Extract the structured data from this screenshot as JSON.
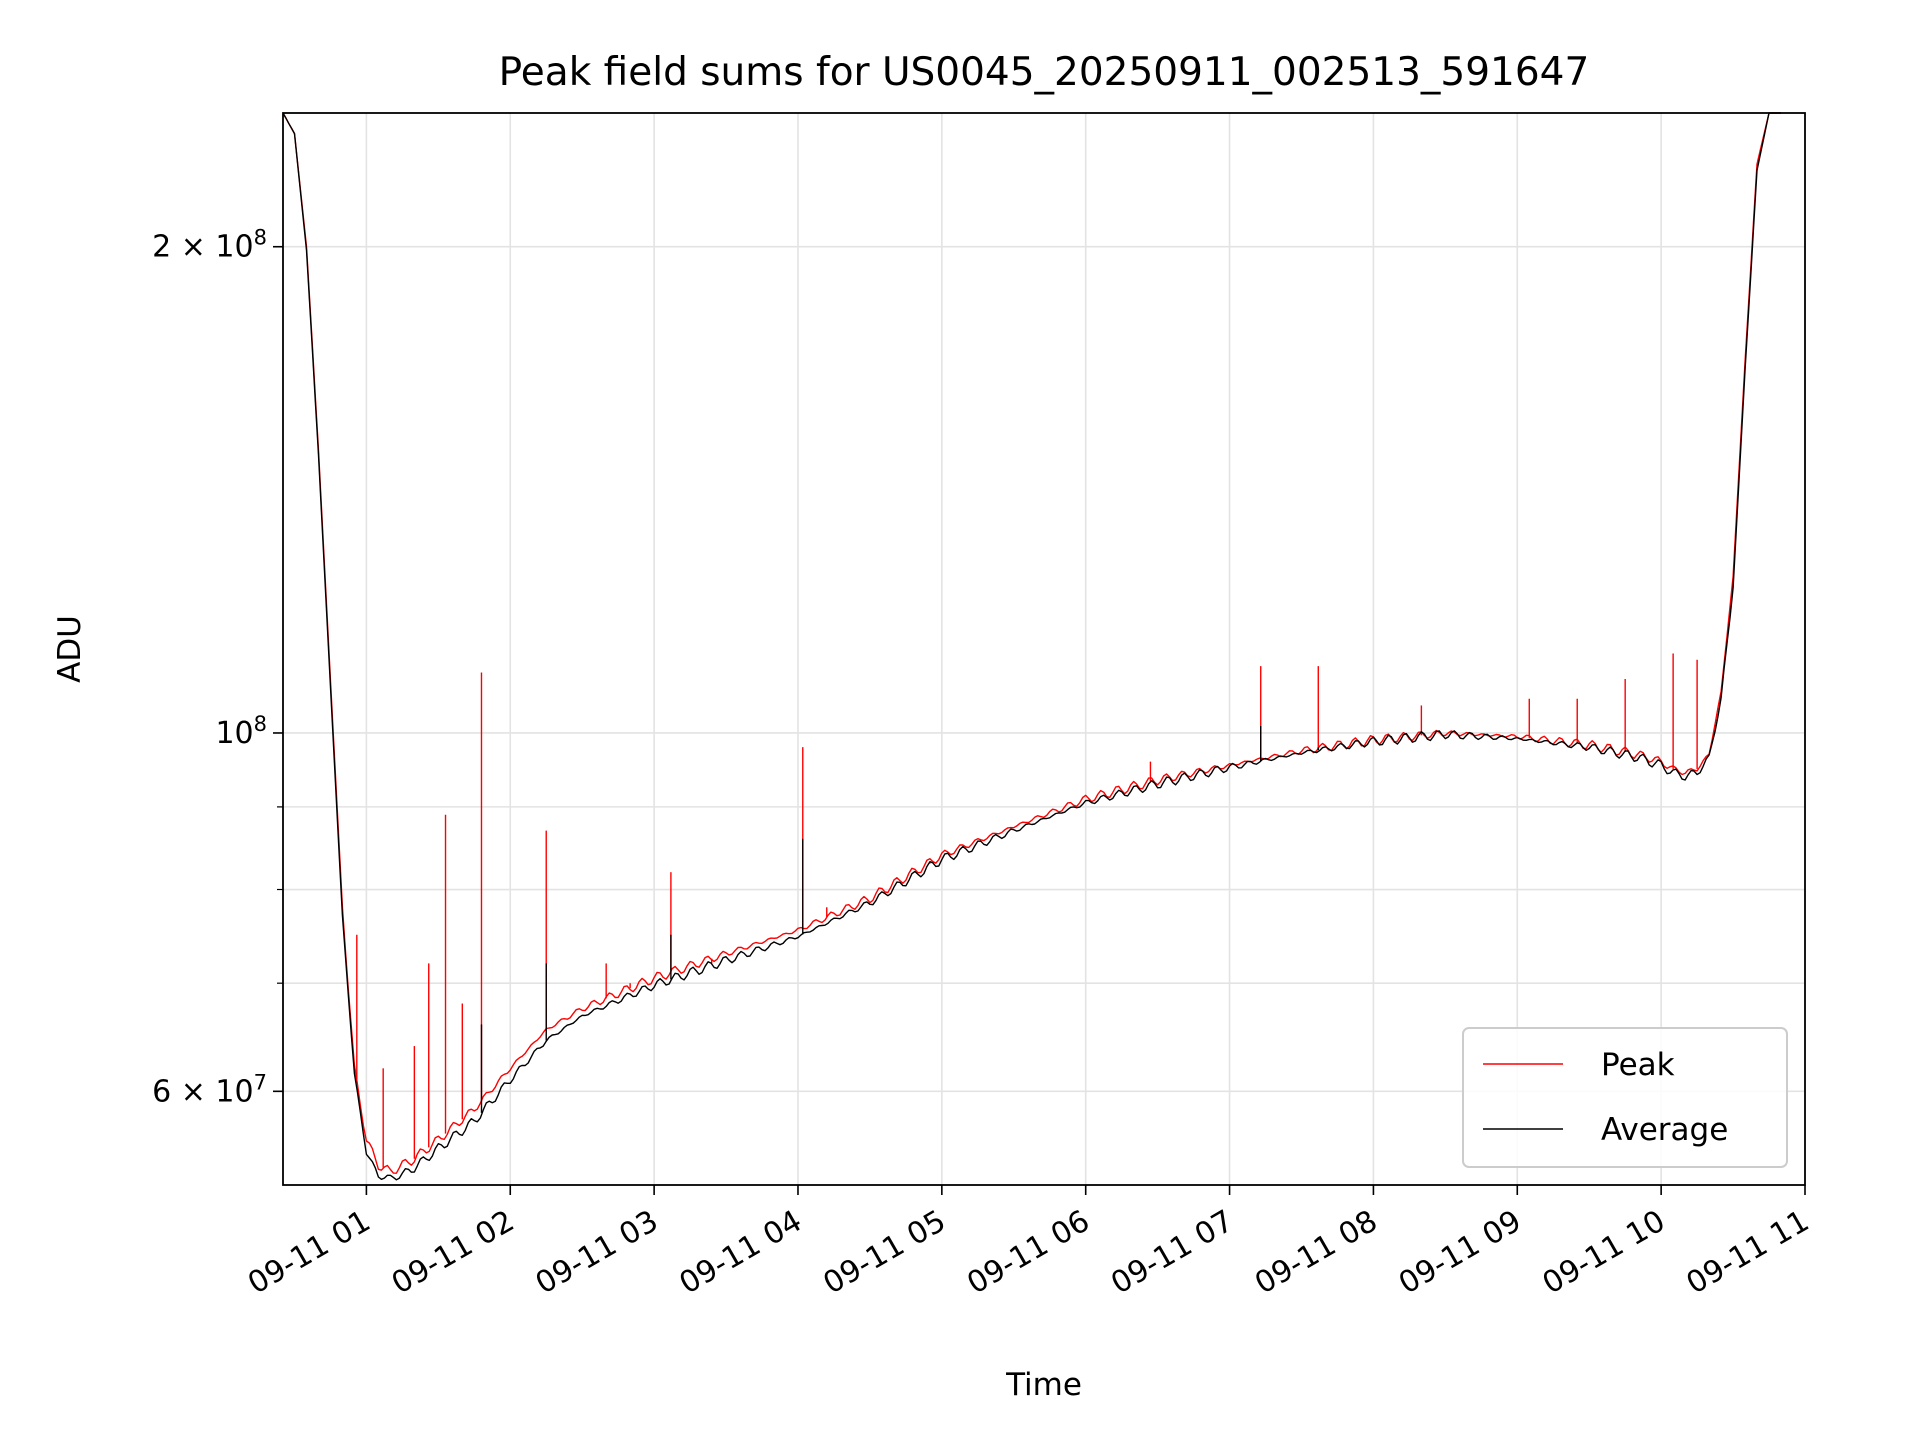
{
  "chart_data": {
    "type": "line",
    "title": "Peak field sums for US0045_20250911_002513_591647",
    "xlabel": "Time",
    "ylabel": "ADU",
    "yscale": "log",
    "ylim": [
      52500000,
      242000000
    ],
    "xlim": [
      "2025-09-11T00:25:13",
      "2025-09-11T11:00:00"
    ],
    "grid": true,
    "legend_position": "lower right",
    "x_ticks": [
      "09-11 01",
      "09-11 02",
      "09-11 03",
      "09-11 04",
      "09-11 05",
      "09-11 06",
      "09-11 07",
      "09-11 08",
      "09-11 09",
      "09-11 10",
      "09-11 11"
    ],
    "y_ticks": [
      {
        "base": "2 × 10",
        "exp": "8",
        "value": 200000000
      },
      {
        "base": "10",
        "exp": "8",
        "value": 100000000
      },
      {
        "base": "6 × 10",
        "exp": "7",
        "value": 60000000
      }
    ],
    "y_minor_ticks": [
      70000000,
      80000000,
      90000000
    ],
    "series": [
      {
        "name": "Peak",
        "color": "#ff0000",
        "x": [
          "2025-09-11T00:25:13",
          "2025-09-11T00:30:00",
          "2025-09-11T00:35:00",
          "2025-09-11T00:40:00",
          "2025-09-11T00:45:00",
          "2025-09-11T00:50:00",
          "2025-09-11T00:55:00",
          "2025-09-11T01:00:00",
          "2025-09-11T01:05:00",
          "2025-09-11T01:10:00",
          "2025-09-11T01:15:00",
          "2025-09-11T01:20:00",
          "2025-09-11T01:30:00",
          "2025-09-11T01:45:00",
          "2025-09-11T02:00:00",
          "2025-09-11T02:15:00",
          "2025-09-11T02:30:00",
          "2025-09-11T02:45:00",
          "2025-09-11T03:00:00",
          "2025-09-11T03:30:00",
          "2025-09-11T04:00:00",
          "2025-09-11T04:30:00",
          "2025-09-11T05:00:00",
          "2025-09-11T05:30:00",
          "2025-09-11T06:00:00",
          "2025-09-11T06:30:00",
          "2025-09-11T07:00:00",
          "2025-09-11T07:30:00",
          "2025-09-11T08:00:00",
          "2025-09-11T08:30:00",
          "2025-09-11T09:00:00",
          "2025-09-11T09:30:00",
          "2025-09-11T09:50:00",
          "2025-09-11T10:00:00",
          "2025-09-11T10:05:00",
          "2025-09-11T10:10:00",
          "2025-09-11T10:15:00",
          "2025-09-11T10:20:00",
          "2025-09-11T10:25:00",
          "2025-09-11T10:30:00",
          "2025-09-11T10:35:00",
          "2025-09-11T10:40:00",
          "2025-09-11T10:45:00",
          "2025-09-11T10:50:00"
        ],
        "values": [
          242000000,
          235000000,
          200000000,
          150000000,
          108000000,
          78000000,
          62000000,
          56000000,
          54000000,
          53500000,
          54000000,
          54500000,
          56000000,
          58500000,
          62000000,
          65500000,
          67500000,
          69000000,
          70500000,
          73000000,
          75500000,
          79000000,
          84000000,
          87500000,
          91000000,
          93500000,
          95500000,
          97500000,
          99000000,
          100000000,
          99500000,
          98300000,
          97000000,
          96000000,
          95000000,
          94500000,
          95000000,
          97000000,
          106000000,
          125000000,
          170000000,
          225000000,
          242000000,
          242000000
        ],
        "spikes": [
          {
            "x": "2025-09-11T00:56:00",
            "value": 75000000
          },
          {
            "x": "2025-09-11T01:07:00",
            "value": 62000000
          },
          {
            "x": "2025-09-11T01:20:00",
            "value": 64000000
          },
          {
            "x": "2025-09-11T01:26:00",
            "value": 72000000
          },
          {
            "x": "2025-09-11T01:33:00",
            "value": 89000000
          },
          {
            "x": "2025-09-11T01:40:00",
            "value": 68000000
          },
          {
            "x": "2025-09-11T01:48:00",
            "value": 109000000
          },
          {
            "x": "2025-09-11T02:15:00",
            "value": 87000000
          },
          {
            "x": "2025-09-11T02:40:00",
            "value": 72000000
          },
          {
            "x": "2025-09-11T02:50:00",
            "value": 70000000
          },
          {
            "x": "2025-09-11T03:07:00",
            "value": 82000000
          },
          {
            "x": "2025-09-11T03:24:00",
            "value": 72000000
          },
          {
            "x": "2025-09-11T04:02:00",
            "value": 98000000
          },
          {
            "x": "2025-09-11T04:12:00",
            "value": 78000000
          },
          {
            "x": "2025-09-11T04:55:00",
            "value": 83000000
          },
          {
            "x": "2025-09-11T06:27:00",
            "value": 96000000
          },
          {
            "x": "2025-09-11T07:13:00",
            "value": 110000000
          },
          {
            "x": "2025-09-11T07:37:00",
            "value": 110000000
          },
          {
            "x": "2025-09-11T08:20:00",
            "value": 104000000
          },
          {
            "x": "2025-09-11T09:05:00",
            "value": 105000000
          },
          {
            "x": "2025-09-11T09:25:00",
            "value": 105000000
          },
          {
            "x": "2025-09-11T09:45:00",
            "value": 108000000
          },
          {
            "x": "2025-09-11T10:05:00",
            "value": 112000000
          },
          {
            "x": "2025-09-11T10:15:00",
            "value": 111000000
          }
        ]
      },
      {
        "name": "Average",
        "color": "#000000",
        "x": [
          "2025-09-11T00:25:13",
          "2025-09-11T00:30:00",
          "2025-09-11T00:35:00",
          "2025-09-11T00:40:00",
          "2025-09-11T00:45:00",
          "2025-09-11T00:50:00",
          "2025-09-11T00:55:00",
          "2025-09-11T01:00:00",
          "2025-09-11T01:05:00",
          "2025-09-11T01:10:00",
          "2025-09-11T01:15:00",
          "2025-09-11T01:20:00",
          "2025-09-11T01:30:00",
          "2025-09-11T01:45:00",
          "2025-09-11T02:00:00",
          "2025-09-11T02:15:00",
          "2025-09-11T02:30:00",
          "2025-09-11T02:45:00",
          "2025-09-11T03:00:00",
          "2025-09-11T03:30:00",
          "2025-09-11T04:00:00",
          "2025-09-11T04:30:00",
          "2025-09-11T05:00:00",
          "2025-09-11T05:30:00",
          "2025-09-11T06:00:00",
          "2025-09-11T06:30:00",
          "2025-09-11T07:00:00",
          "2025-09-11T07:30:00",
          "2025-09-11T08:00:00",
          "2025-09-11T08:30:00",
          "2025-09-11T09:00:00",
          "2025-09-11T09:30:00",
          "2025-09-11T09:50:00",
          "2025-09-11T10:00:00",
          "2025-09-11T10:05:00",
          "2025-09-11T10:10:00",
          "2025-09-11T10:15:00",
          "2025-09-11T10:20:00",
          "2025-09-11T10:25:00",
          "2025-09-11T10:30:00",
          "2025-09-11T10:35:00",
          "2025-09-11T10:40:00",
          "2025-09-11T10:45:00",
          "2025-09-11T10:50:00"
        ],
        "values": [
          242000000,
          235000000,
          199000000,
          149000000,
          107000000,
          77000000,
          61500000,
          55000000,
          53200000,
          53000000,
          53300000,
          53800000,
          55300000,
          57500000,
          61000000,
          64500000,
          66800000,
          68300000,
          69800000,
          72300000,
          74800000,
          78500000,
          83500000,
          87000000,
          90500000,
          93000000,
          95200000,
          97200000,
          98800000,
          99800000,
          99200000,
          98000000,
          96600000,
          95500000,
          94500000,
          94000000,
          94500000,
          96500000,
          105000000,
          123000000,
          168000000,
          223000000,
          242000000,
          242000000
        ],
        "spikes": [
          {
            "x": "2025-09-11T01:48:00",
            "value": 66000000
          },
          {
            "x": "2025-09-11T02:15:00",
            "value": 72000000
          },
          {
            "x": "2025-09-11T03:07:00",
            "value": 75000000
          },
          {
            "x": "2025-09-11T04:02:00",
            "value": 86000000
          },
          {
            "x": "2025-09-11T07:13:00",
            "value": 101000000
          },
          {
            "x": "2025-09-11T07:37:00",
            "value": 98000000
          }
        ]
      }
    ]
  }
}
